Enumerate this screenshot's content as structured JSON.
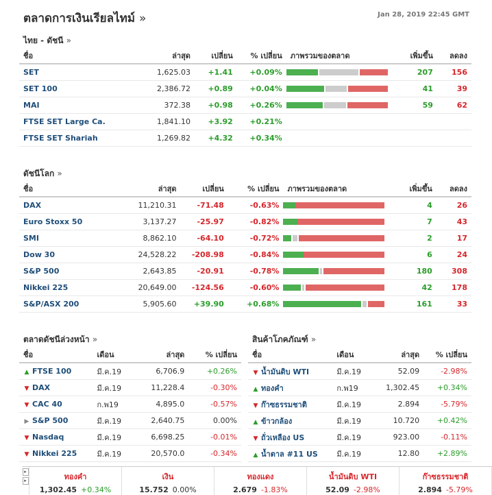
{
  "header": {
    "title": "ตลาดการเงินเรียลไทม์",
    "arrow": "»",
    "timestamp": "Jan 28, 2019 22:45 GMT"
  },
  "thai": {
    "title": "ไทย - ดัชนี",
    "arrow": "»",
    "cols": [
      "ชื่อ",
      "ล่าสุด",
      "เปลี่ยน",
      "% เปลี่ยน",
      "ภาพรวมของตลาด",
      "เพิ่มขึ้น",
      "ลดลง"
    ],
    "rows": [
      {
        "name": "SET",
        "last": "1,625.03",
        "chg": "+1.41",
        "pct": "+0.09%",
        "dir": "up",
        "bar": [
          0.32,
          0.4,
          0.28
        ],
        "adv": "207",
        "dec": "156"
      },
      {
        "name": "SET 100",
        "last": "2,386.72",
        "chg": "+0.89",
        "pct": "+0.04%",
        "dir": "up",
        "bar": [
          0.38,
          0.22,
          0.4
        ],
        "adv": "41",
        "dec": "39"
      },
      {
        "name": "MAI",
        "last": "372.38",
        "chg": "+0.98",
        "pct": "+0.26%",
        "dir": "up",
        "bar": [
          0.37,
          0.22,
          0.41
        ],
        "adv": "59",
        "dec": "62"
      },
      {
        "name": "FTSE SET Large Ca.",
        "last": "1,841.10",
        "chg": "+3.92",
        "pct": "+0.21%",
        "dir": "up",
        "bar": null,
        "adv": "",
        "dec": ""
      },
      {
        "name": "FTSE SET Shariah",
        "last": "1,269.82",
        "chg": "+4.32",
        "pct": "+0.34%",
        "dir": "up",
        "bar": null,
        "adv": "",
        "dec": ""
      }
    ]
  },
  "world": {
    "title": "ดัชนีโลก",
    "arrow": "»",
    "cols": [
      "ชื่อ",
      "ล่าสุด",
      "เปลี่ยน",
      "% เปลี่ยน",
      "ภาพรวมของตลาด",
      "เพิ่มขึ้น",
      "ลดลง"
    ],
    "rows": [
      {
        "name": "DAX",
        "last": "11,210.31",
        "chg": "-71.48",
        "pct": "-0.63%",
        "dir": "down",
        "bar": [
          0.12,
          0.0,
          0.88
        ],
        "adv": "4",
        "dec": "26"
      },
      {
        "name": "Euro Stoxx 50",
        "last": "3,137.27",
        "chg": "-25.97",
        "pct": "-0.82%",
        "dir": "down",
        "bar": [
          0.14,
          0.0,
          0.86
        ],
        "adv": "7",
        "dec": "43"
      },
      {
        "name": "SMI",
        "last": "8,862.10",
        "chg": "-64.10",
        "pct": "-0.72%",
        "dir": "down",
        "bar": [
          0.08,
          0.05,
          0.87
        ],
        "adv": "2",
        "dec": "17"
      },
      {
        "name": "Dow 30",
        "last": "24,528.22",
        "chg": "-208.98",
        "pct": "-0.84%",
        "dir": "down",
        "bar": [
          0.2,
          0.0,
          0.8
        ],
        "adv": "6",
        "dec": "24"
      },
      {
        "name": "S&P 500",
        "last": "2,643.85",
        "chg": "-20.91",
        "pct": "-0.78%",
        "dir": "down",
        "bar": [
          0.36,
          0.02,
          0.62
        ],
        "adv": "180",
        "dec": "308"
      },
      {
        "name": "Nikkei 225",
        "last": "20,649.00",
        "chg": "-124.56",
        "pct": "-0.60%",
        "dir": "down",
        "bar": [
          0.18,
          0.02,
          0.8
        ],
        "adv": "42",
        "dec": "178"
      },
      {
        "name": "S&P/ASX 200",
        "last": "5,905.60",
        "chg": "+39.90",
        "pct": "+0.68%",
        "dir": "up",
        "bar": [
          0.79,
          0.04,
          0.17
        ],
        "adv": "161",
        "dec": "33"
      }
    ]
  },
  "futures": {
    "title": "ตลาดดัชนีล่วงหน้า",
    "arrow": "»",
    "cols": [
      "ชื่อ",
      "เดือน",
      "ล่าสุด",
      "% เปลี่ยน"
    ],
    "rows": [
      {
        "name": "FTSE 100",
        "month": "มี.ค.19",
        "last": "6,706.9",
        "pct": "+0.26%",
        "dir": "up",
        "icon": "arrow-up-icon"
      },
      {
        "name": "DAX",
        "month": "มี.ค.19",
        "last": "11,228.4",
        "pct": "-0.30%",
        "dir": "down",
        "icon": "arrow-down-icon"
      },
      {
        "name": "CAC 40",
        "month": "ก.พ19",
        "last": "4,895.0",
        "pct": "-0.57%",
        "dir": "down",
        "icon": "arrow-down-icon"
      },
      {
        "name": "S&P 500",
        "month": "มี.ค.19",
        "last": "2,640.75",
        "pct": "0.00%",
        "dir": "flat",
        "icon": "arrow-right-icon"
      },
      {
        "name": "Nasdaq",
        "month": "มี.ค.19",
        "last": "6,698.25",
        "pct": "-0.01%",
        "dir": "down",
        "icon": "arrow-down-icon"
      },
      {
        "name": "Nikkei 225",
        "month": "มี.ค.19",
        "last": "20,570.0",
        "pct": "-0.34%",
        "dir": "down",
        "icon": "arrow-down-icon"
      }
    ]
  },
  "commodities": {
    "title": "สินค้าโภคภัณฑ์",
    "arrow": "»",
    "cols": [
      "ชื่อ",
      "เดือน",
      "ล่าสุด",
      "% เปลี่ยน"
    ],
    "rows": [
      {
        "name": "น้ำมันดิบ WTI",
        "month": "มี.ค.19",
        "last": "52.09",
        "pct": "-2.98%",
        "dir": "down",
        "icon": "arrow-down-icon"
      },
      {
        "name": "ทองคำ",
        "month": "ก.พ19",
        "last": "1,302.45",
        "pct": "+0.34%",
        "dir": "up",
        "icon": "arrow-up-icon"
      },
      {
        "name": "ก๊าซธรรมชาติ",
        "month": "มี.ค.19",
        "last": "2.894",
        "pct": "-5.79%",
        "dir": "down",
        "icon": "arrow-down-icon"
      },
      {
        "name": "ข้าวกล้อง",
        "month": "มี.ค.19",
        "last": "10.720",
        "pct": "+0.42%",
        "dir": "up",
        "icon": "arrow-up-icon"
      },
      {
        "name": "ถั่วเหลือง US",
        "month": "มี.ค.19",
        "last": "923.00",
        "pct": "-0.11%",
        "dir": "down",
        "icon": "arrow-down-icon"
      },
      {
        "name": "น้ำตาล #11 US",
        "month": "มี.ค.19",
        "last": "12.80",
        "pct": "+2.89%",
        "dir": "up",
        "icon": "arrow-up-icon"
      }
    ]
  },
  "footer": {
    "items": [
      {
        "name": "ทองคำ",
        "last": "1,302.45",
        "pct": "+0.34%",
        "dir": "up"
      },
      {
        "name": "เงิน",
        "last": "15.752",
        "pct": "0.00%",
        "dir": "flat"
      },
      {
        "name": "ทองแดง",
        "last": "2.679",
        "pct": "-1.83%",
        "dir": "down"
      },
      {
        "name": "น้ำมันดิบ WTI",
        "last": "52.09",
        "pct": "-2.98%",
        "dir": "down"
      },
      {
        "name": "ก๊าซธรรมชาติ",
        "last": "2.894",
        "pct": "-5.79%",
        "dir": "down"
      }
    ]
  }
}
